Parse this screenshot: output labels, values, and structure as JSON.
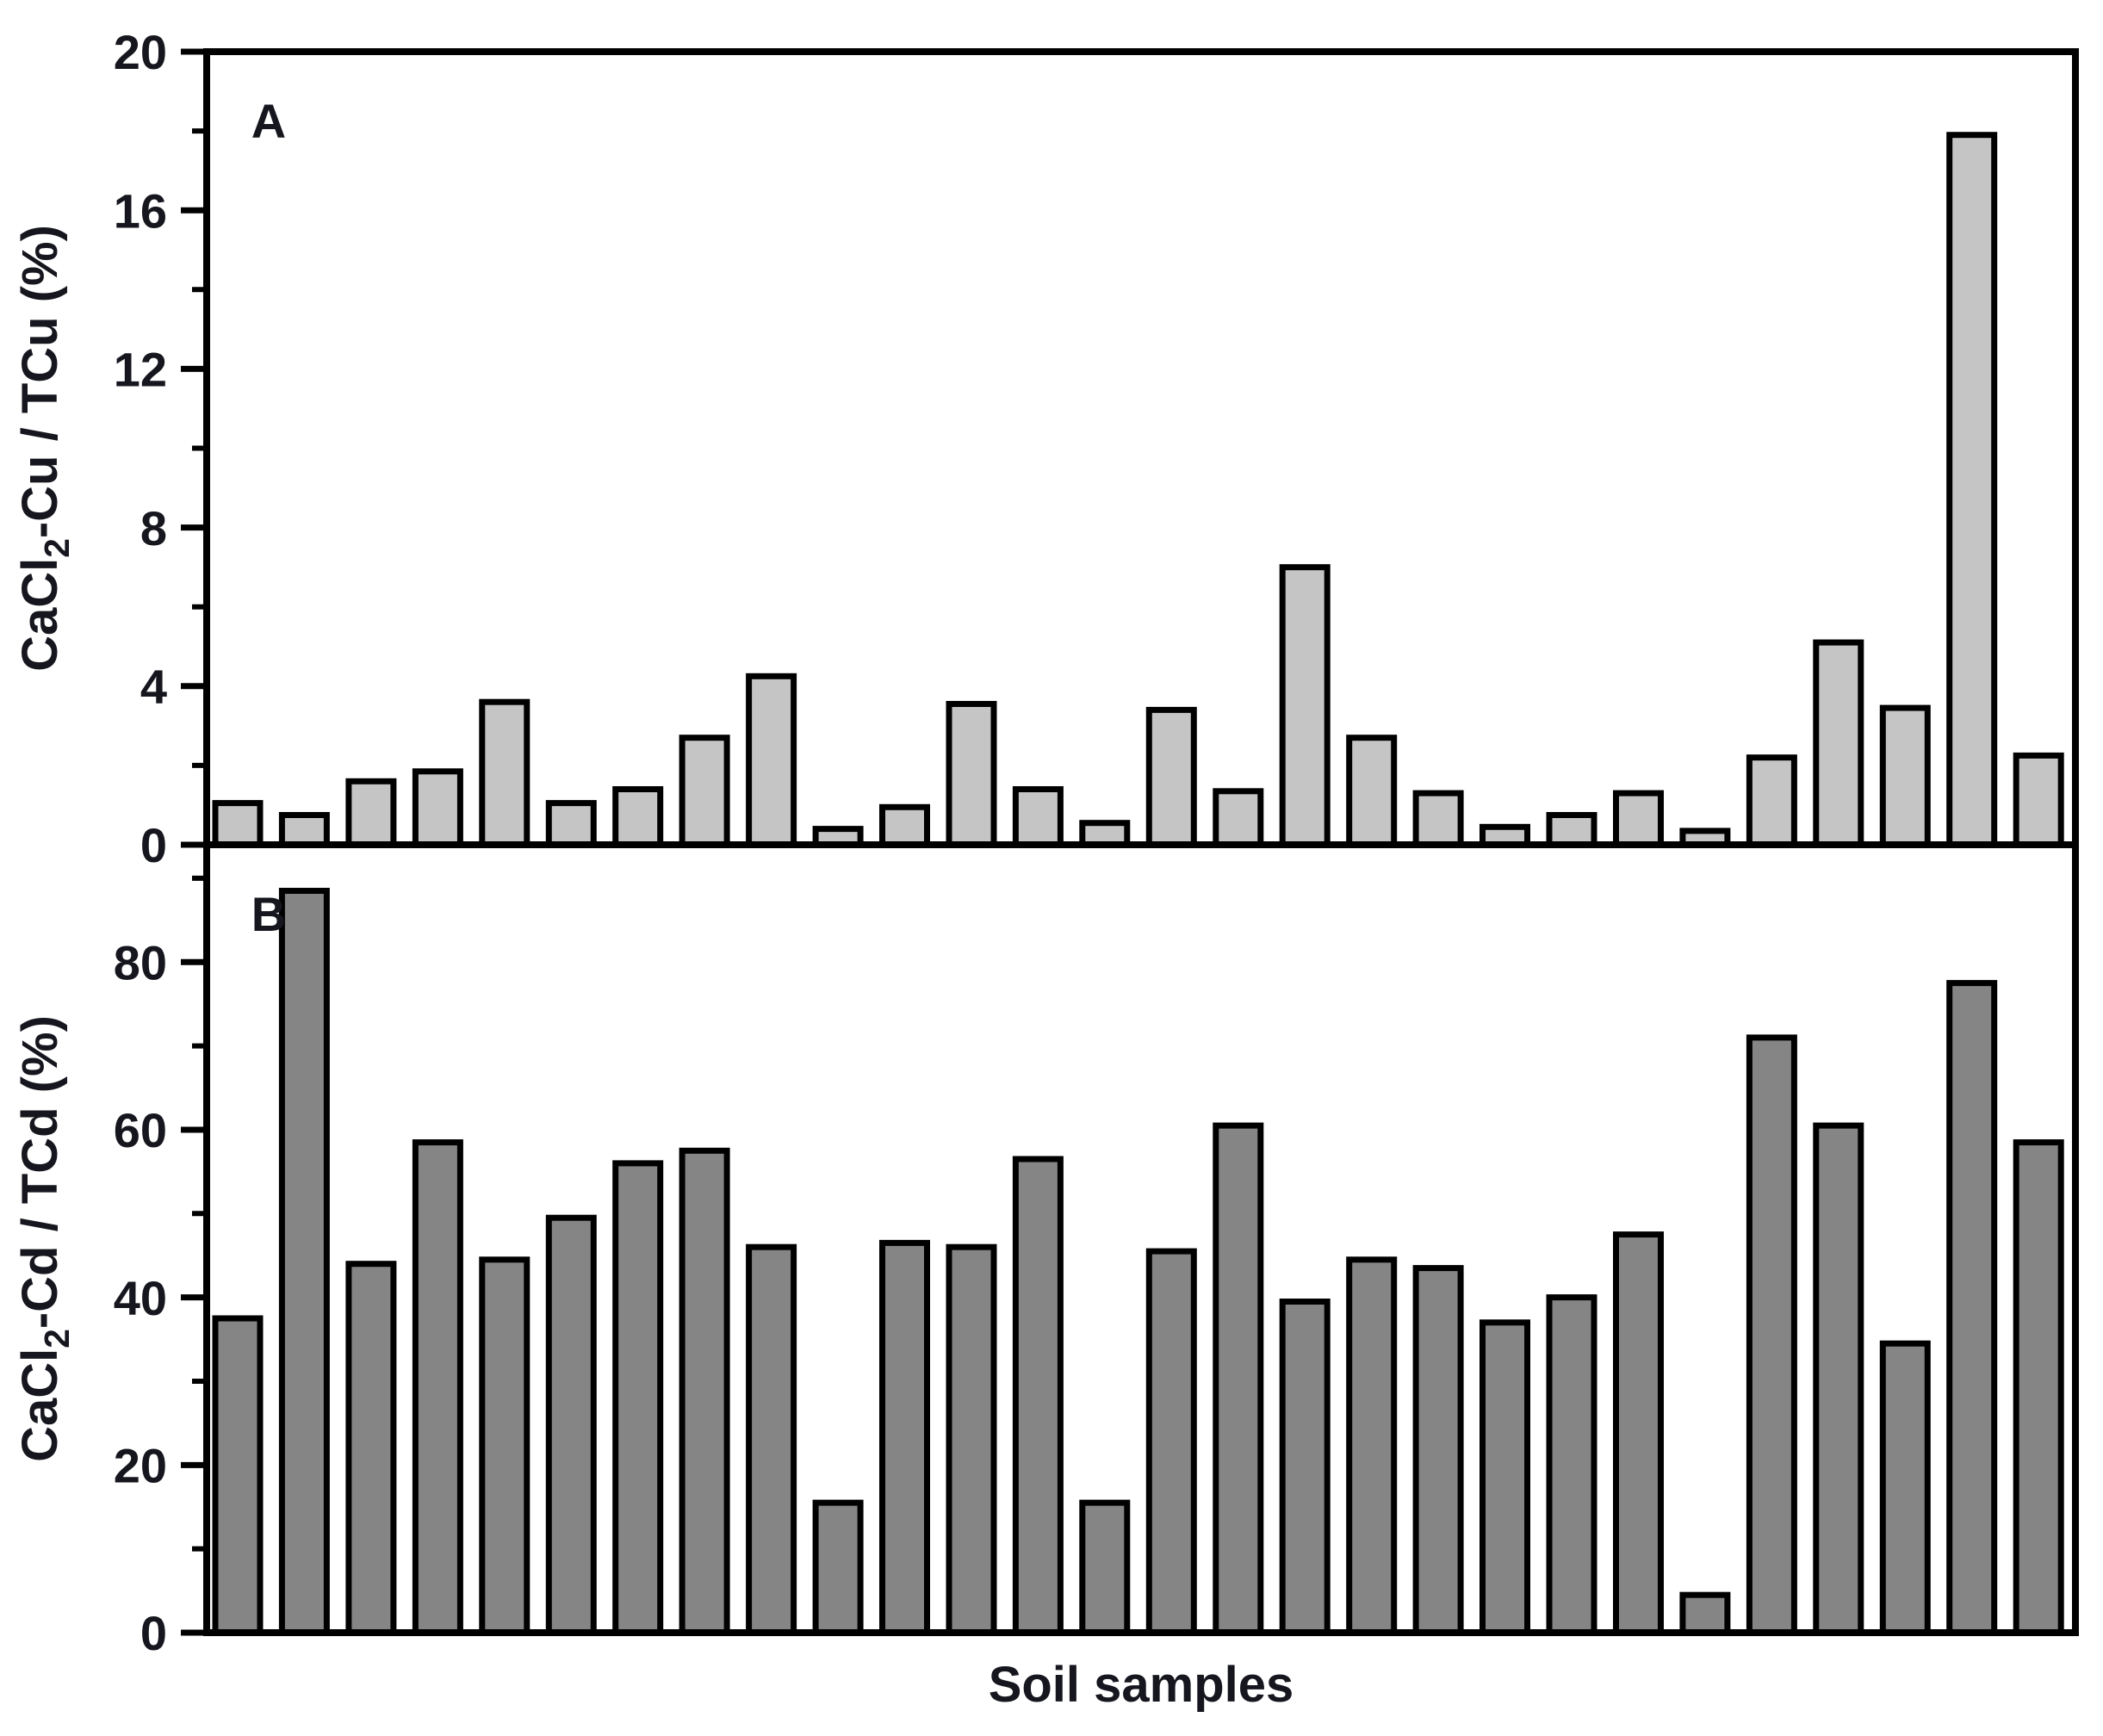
{
  "figure": {
    "background": "#ffffff",
    "text_color": "#16161f",
    "axis_color": "#000000",
    "x_axis_label": "Soil samples",
    "x_tick_labels": "none"
  },
  "chart_data": [
    {
      "type": "bar",
      "panel_letter": "A",
      "ylabel": "CaCl2-Cu / TCu (%)",
      "ylabel_parts": {
        "prefix": "CaCl",
        "subscript": "2",
        "suffix": "-Cu / TCu (%)"
      },
      "xlabel": "",
      "ylim": [
        0,
        20
      ],
      "yticks_major": [
        0,
        4,
        8,
        12,
        16,
        20
      ],
      "yticks_minor": [
        2,
        6,
        10,
        14,
        18
      ],
      "grid": false,
      "legend": "none",
      "bar_fill": "#c5c5c5",
      "bar_stroke": "#000000",
      "n_samples": 28,
      "values": [
        1.05,
        0.75,
        1.6,
        1.85,
        3.6,
        1.05,
        1.4,
        2.7,
        4.25,
        0.4,
        0.95,
        3.55,
        1.4,
        0.55,
        3.4,
        1.35,
        7.0,
        2.7,
        1.3,
        0.45,
        0.75,
        1.3,
        0.35,
        2.2,
        5.1,
        3.45,
        17.9,
        2.25
      ]
    },
    {
      "type": "bar",
      "panel_letter": "B",
      "ylabel": "CaCl2-Cd / TCd (%)",
      "ylabel_parts": {
        "prefix": "CaCl",
        "subscript": "2",
        "suffix": "-Cd / TCd (%)"
      },
      "xlabel": "Soil samples",
      "ylim": [
        0,
        94
      ],
      "yticks_major": [
        0,
        20,
        40,
        60,
        80
      ],
      "yticks_minor": [
        10,
        30,
        50,
        70,
        90
      ],
      "grid": false,
      "legend": "none",
      "bar_fill": "#858585",
      "bar_stroke": "#000000",
      "n_samples": 28,
      "values": [
        37.5,
        88.5,
        44.0,
        58.5,
        44.5,
        49.5,
        56.0,
        57.5,
        46.0,
        15.5,
        46.5,
        46.0,
        56.5,
        15.5,
        45.5,
        60.5,
        39.5,
        44.5,
        43.5,
        37.0,
        40.0,
        47.5,
        4.5,
        71.0,
        60.5,
        34.5,
        77.5,
        58.5
      ]
    }
  ]
}
